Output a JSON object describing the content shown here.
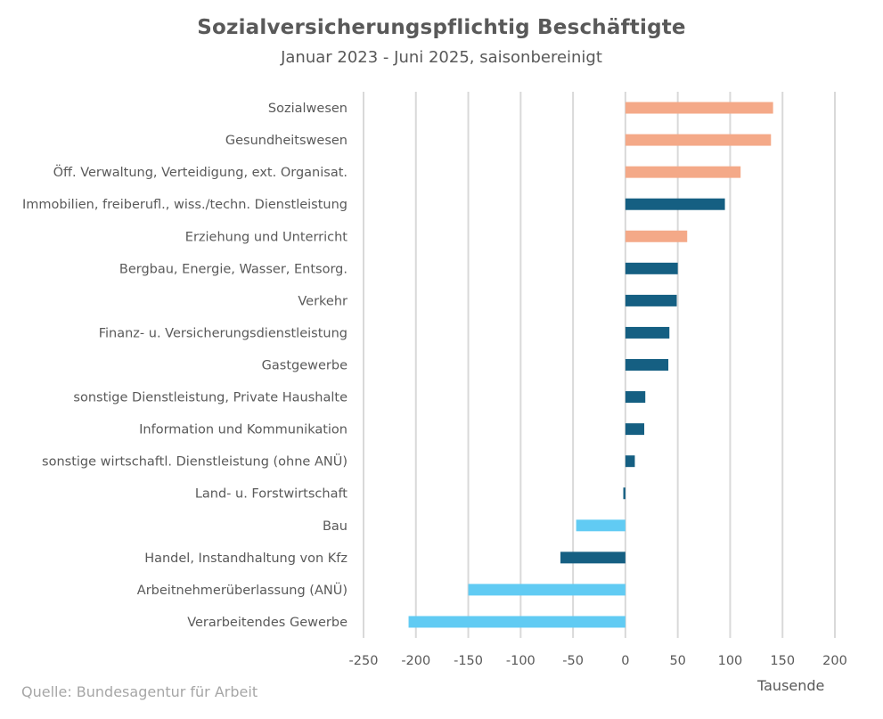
{
  "chart_data": {
    "type": "bar",
    "orientation": "horizontal",
    "title": "Sozialversicherungspflichtig Beschäftigte",
    "subtitle": "Januar 2023 - Juni 2025, saisonbereinigt",
    "xlabel": "Tausende",
    "ylabel": "",
    "xlim": [
      -250,
      200
    ],
    "xticks": [
      -250,
      -200,
      -150,
      -100,
      -50,
      0,
      50,
      100,
      150,
      200
    ],
    "xtick_labels": [
      "-250",
      "-200",
      "-150",
      "-100",
      "-50",
      "0",
      "50",
      "100",
      "150",
      "200"
    ],
    "grid": true,
    "legend": "none",
    "source": "Quelle: Bundesagentur für Arbeit",
    "colors": {
      "salmon": "#F4A988",
      "dark_blue": "#155F82",
      "light_blue": "#61CBF3",
      "grid": "#D9D9D9",
      "text": "#595959"
    },
    "categories": [
      "Sozialwesen",
      "Gesundheitswesen",
      "Öff. Verwaltung, Verteidigung, ext. Organisat.",
      "Immobilien, freiberufl., wiss./techn. Dienstleistung",
      "Erziehung und Unterricht",
      "Bergbau, Energie, Wasser, Entsorg.",
      "Verkehr",
      "Finanz- u. Versicherungsdienstleistung",
      "Gastgewerbe",
      "sonstige Dienstleistung, Private Haushalte",
      "Information und Kommunikation",
      "sonstige wirtschaftl. Dienstleistung (ohne ANÜ)",
      "Land- u. Forstwirtschaft",
      "Bau",
      "Handel, Instandhaltung von Kfz",
      "Arbeitnehmerüberlassung (ANÜ)",
      "Verarbeitendes Gewerbe"
    ],
    "values": [
      141,
      139,
      110,
      95,
      59,
      50,
      49,
      42,
      41,
      19,
      18,
      9,
      -2,
      -47,
      -62,
      -150,
      -207
    ],
    "bar_colors": [
      "salmon",
      "salmon",
      "salmon",
      "dark_blue",
      "salmon",
      "dark_blue",
      "dark_blue",
      "dark_blue",
      "dark_blue",
      "dark_blue",
      "dark_blue",
      "dark_blue",
      "dark_blue",
      "light_blue",
      "dark_blue",
      "light_blue",
      "light_blue"
    ]
  }
}
